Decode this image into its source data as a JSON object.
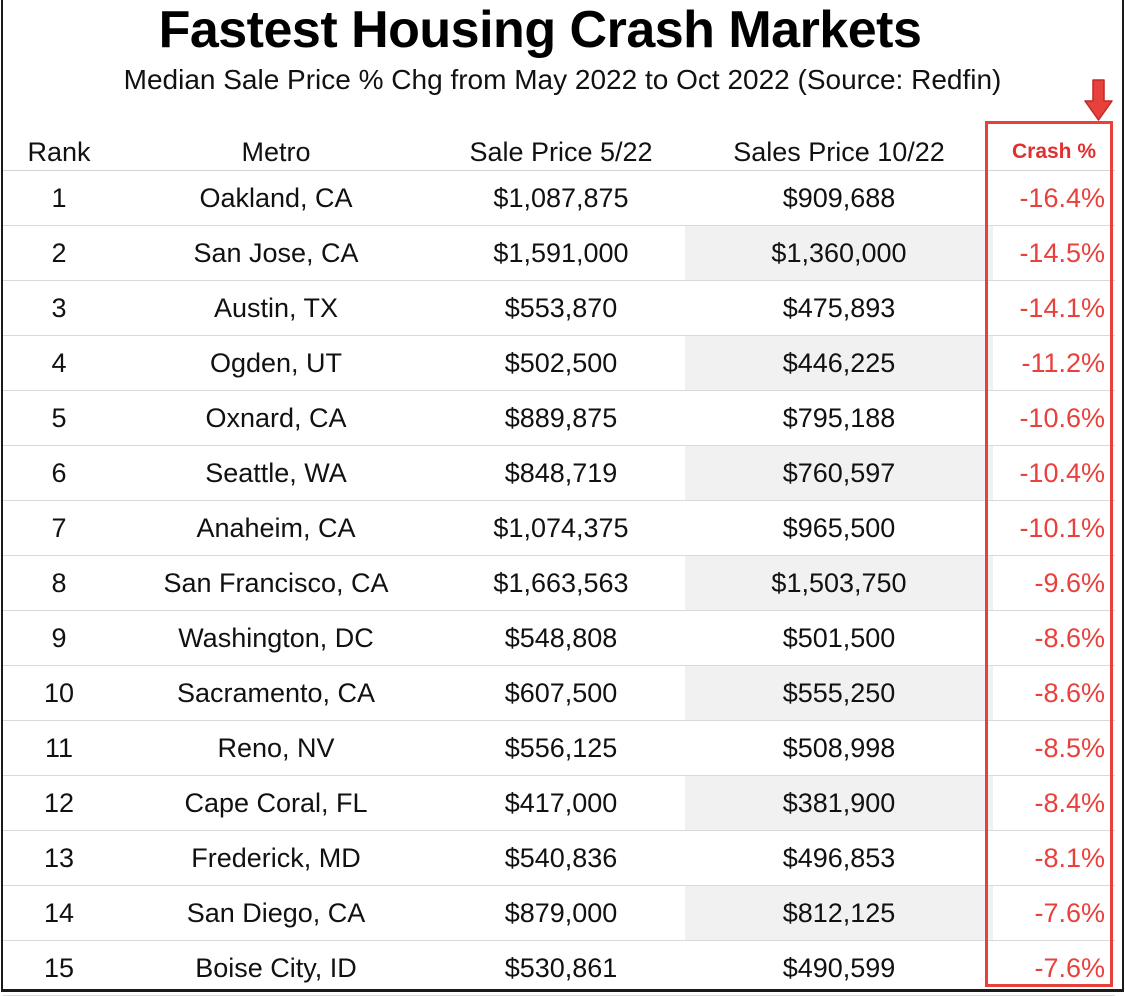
{
  "title": "Fastest Housing Crash Markets",
  "subtitle": "Median Sale Price % Chg from May 2022 to Oct 2022 (Source: Redfin)",
  "accent_color": "#e8413c",
  "arrow_icon": "down-arrow",
  "columns": {
    "rank": "Rank",
    "metro": "Metro",
    "price_may": "Sale Price 5/22",
    "price_oct": "Sales Price 10/22",
    "crash": "Crash %"
  },
  "chart_data": {
    "type": "table",
    "title": "Fastest Housing Crash Markets",
    "subtitle": "Median Sale Price % Chg from May 2022 to Oct 2022 (Source: Redfin)",
    "columns": [
      "Rank",
      "Metro",
      "Sale Price 5/22",
      "Sales Price 10/22",
      "Crash %"
    ],
    "rows": [
      {
        "rank": "1",
        "metro": "Oakland, CA",
        "price_may": "$1,087,875",
        "price_oct": "$909,688",
        "crash": "-16.4%"
      },
      {
        "rank": "2",
        "metro": "San Jose, CA",
        "price_may": "$1,591,000",
        "price_oct": "$1,360,000",
        "crash": "-14.5%"
      },
      {
        "rank": "3",
        "metro": "Austin, TX",
        "price_may": "$553,870",
        "price_oct": "$475,893",
        "crash": "-14.1%"
      },
      {
        "rank": "4",
        "metro": "Ogden, UT",
        "price_may": "$502,500",
        "price_oct": "$446,225",
        "crash": "-11.2%"
      },
      {
        "rank": "5",
        "metro": "Oxnard, CA",
        "price_may": "$889,875",
        "price_oct": "$795,188",
        "crash": "-10.6%"
      },
      {
        "rank": "6",
        "metro": "Seattle, WA",
        "price_may": "$848,719",
        "price_oct": "$760,597",
        "crash": "-10.4%"
      },
      {
        "rank": "7",
        "metro": "Anaheim, CA",
        "price_may": "$1,074,375",
        "price_oct": "$965,500",
        "crash": "-10.1%"
      },
      {
        "rank": "8",
        "metro": "San Francisco, CA",
        "price_may": "$1,663,563",
        "price_oct": "$1,503,750",
        "crash": "-9.6%"
      },
      {
        "rank": "9",
        "metro": "Washington, DC",
        "price_may": "$548,808",
        "price_oct": "$501,500",
        "crash": "-8.6%"
      },
      {
        "rank": "10",
        "metro": "Sacramento, CA",
        "price_may": "$607,500",
        "price_oct": "$555,250",
        "crash": "-8.6%"
      },
      {
        "rank": "11",
        "metro": "Reno, NV",
        "price_may": "$556,125",
        "price_oct": "$508,998",
        "crash": "-8.5%"
      },
      {
        "rank": "12",
        "metro": "Cape Coral, FL",
        "price_may": "$417,000",
        "price_oct": "$381,900",
        "crash": "-8.4%"
      },
      {
        "rank": "13",
        "metro": "Frederick, MD",
        "price_may": "$540,836",
        "price_oct": "$496,853",
        "crash": "-8.1%"
      },
      {
        "rank": "14",
        "metro": "San Diego, CA",
        "price_may": "$879,000",
        "price_oct": "$812,125",
        "crash": "-7.6%"
      },
      {
        "rank": "15",
        "metro": "Boise City, ID",
        "price_may": "$530,861",
        "price_oct": "$490,599",
        "crash": "-7.6%"
      }
    ]
  }
}
